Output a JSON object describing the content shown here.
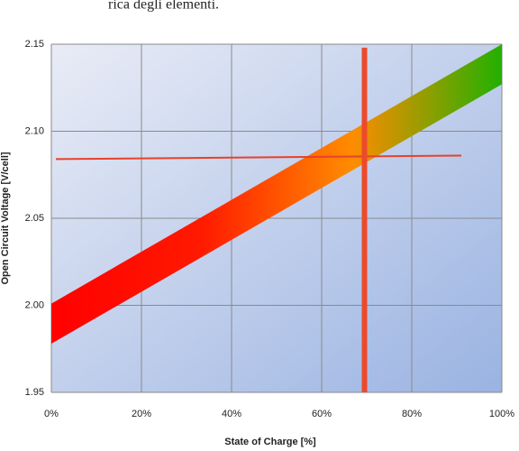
{
  "caption": "rica degli elementi.",
  "chart_data": {
    "type": "band",
    "x_label": "State of Charge [%]",
    "y_label": "Open Circuit Voltage [V/cell]",
    "xlim": [
      0,
      100
    ],
    "xticks": [
      {
        "value": 0,
        "label": "0%"
      },
      {
        "value": 20,
        "label": "20%"
      },
      {
        "value": 40,
        "label": "40%"
      },
      {
        "value": 60,
        "label": "60%"
      },
      {
        "value": 80,
        "label": "80%"
      },
      {
        "value": 100,
        "label": "100%"
      }
    ],
    "ylim": [
      1.95,
      2.15
    ],
    "yticks": [
      1.95,
      {
        "value": 2,
        "label": "2.00"
      },
      2.05,
      {
        "value": 2.1,
        "label": "2.10"
      },
      2.15
    ],
    "grid": true,
    "band": {
      "x": [
        0,
        100
      ],
      "lower": [
        1.978,
        2.127
      ],
      "upper": [
        2.001,
        2.15
      ],
      "colors": [
        "#ff0000",
        "#ff1a00",
        "#ff8c00",
        "#22b000"
      ]
    },
    "reference_lines": [
      {
        "x": [
          1,
          91
        ],
        "y": [
          2.084,
          2.086
        ],
        "color": "#e8412a",
        "width": 2
      },
      {
        "x": [
          69.5,
          69.5
        ],
        "y": [
          1.95,
          2.148
        ],
        "color": "#ec4a2c",
        "width": 6
      }
    ]
  }
}
